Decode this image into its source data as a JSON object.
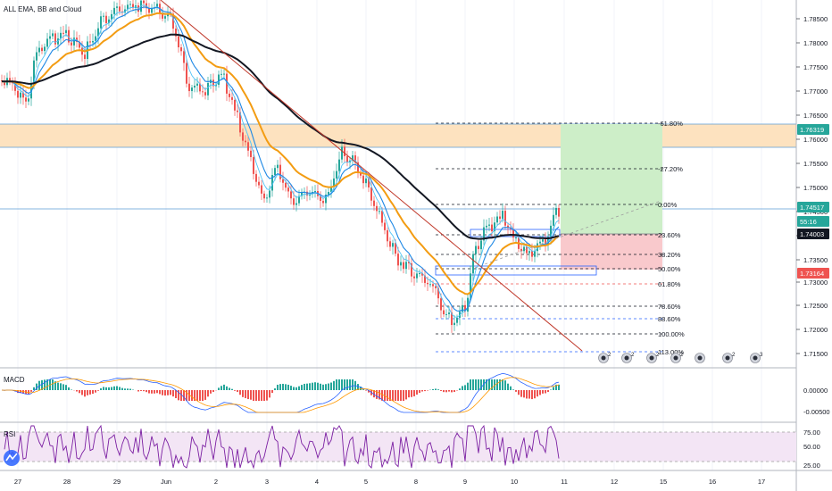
{
  "indicators": {
    "main_label": "ALL EMA, BB and Cloud",
    "macd_label": "MACD",
    "rsi_label": "RSI"
  },
  "colors": {
    "up": "#26a69a",
    "down": "#ef5350",
    "ema_fast": "#1e88e5",
    "ema_slow": "#f39c12",
    "ema_long": "#131722",
    "trendline": "#c0392b",
    "zone": "#fde2bf",
    "target_zone": "#cdeec8",
    "stop_zone": "#f9c9cc",
    "rsi_band": "#f3e5f5"
  },
  "price_axis": {
    "ticks": [
      "1.78500",
      "1.78000",
      "1.77500",
      "1.77000",
      "1.76500",
      "1.76000",
      "1.75500",
      "1.75000",
      "1.74500",
      "1.74000",
      "1.73500",
      "1.73000",
      "1.72500",
      "1.72000",
      "1.71500"
    ],
    "tags": [
      {
        "text": "1.76319",
        "color": "#26a69a"
      },
      {
        "text": "1.74517",
        "color": "#26a69a"
      },
      {
        "text": "55:16",
        "color": "#26a69a"
      },
      {
        "text": "1.74003",
        "color": "#131722"
      },
      {
        "text": "1.73164",
        "color": "#ef5350"
      }
    ]
  },
  "macd_axis": {
    "ticks": [
      "0.00000",
      "-0.00500"
    ]
  },
  "rsi_axis": {
    "ticks": [
      "75.00",
      "50.00",
      "25.00"
    ]
  },
  "date_axis": {
    "ticks": [
      "27",
      "28",
      "29",
      "Jun",
      "2",
      "3",
      "4",
      "5",
      "8",
      "9",
      "10",
      "11",
      "12",
      "15",
      "16",
      "17"
    ]
  },
  "fib_levels": [
    {
      "label": "-61.80%",
      "color": "#131722"
    },
    {
      "label": "-27.20%",
      "color": "#131722"
    },
    {
      "label": "0.00%",
      "color": "#131722"
    },
    {
      "label": "23.60%",
      "color": "#131722"
    },
    {
      "label": "38.20%",
      "color": "#131722"
    },
    {
      "label": "50.00%",
      "color": "#131722"
    },
    {
      "label": "61.80%",
      "color": "#ef5350"
    },
    {
      "label": "78.60%",
      "color": "#131722"
    },
    {
      "label": "88.60%",
      "color": "#2962ff"
    },
    {
      "label": "100.00%",
      "color": "#131722"
    },
    {
      "label": "113.00%",
      "color": "#2962ff"
    }
  ],
  "events": [
    {
      "name": "economic-event-icon",
      "badge": "2"
    },
    {
      "name": "economic-event-icon",
      "badge": "2"
    },
    {
      "name": "economic-event-icon",
      "badge": "2"
    },
    {
      "name": "economic-event-icon",
      "badge": "2"
    },
    {
      "name": "economic-event-icon",
      "badge": ""
    },
    {
      "name": "economic-event-icon",
      "badge": "2"
    },
    {
      "name": "economic-event-icon",
      "badge": "3"
    }
  ]
}
